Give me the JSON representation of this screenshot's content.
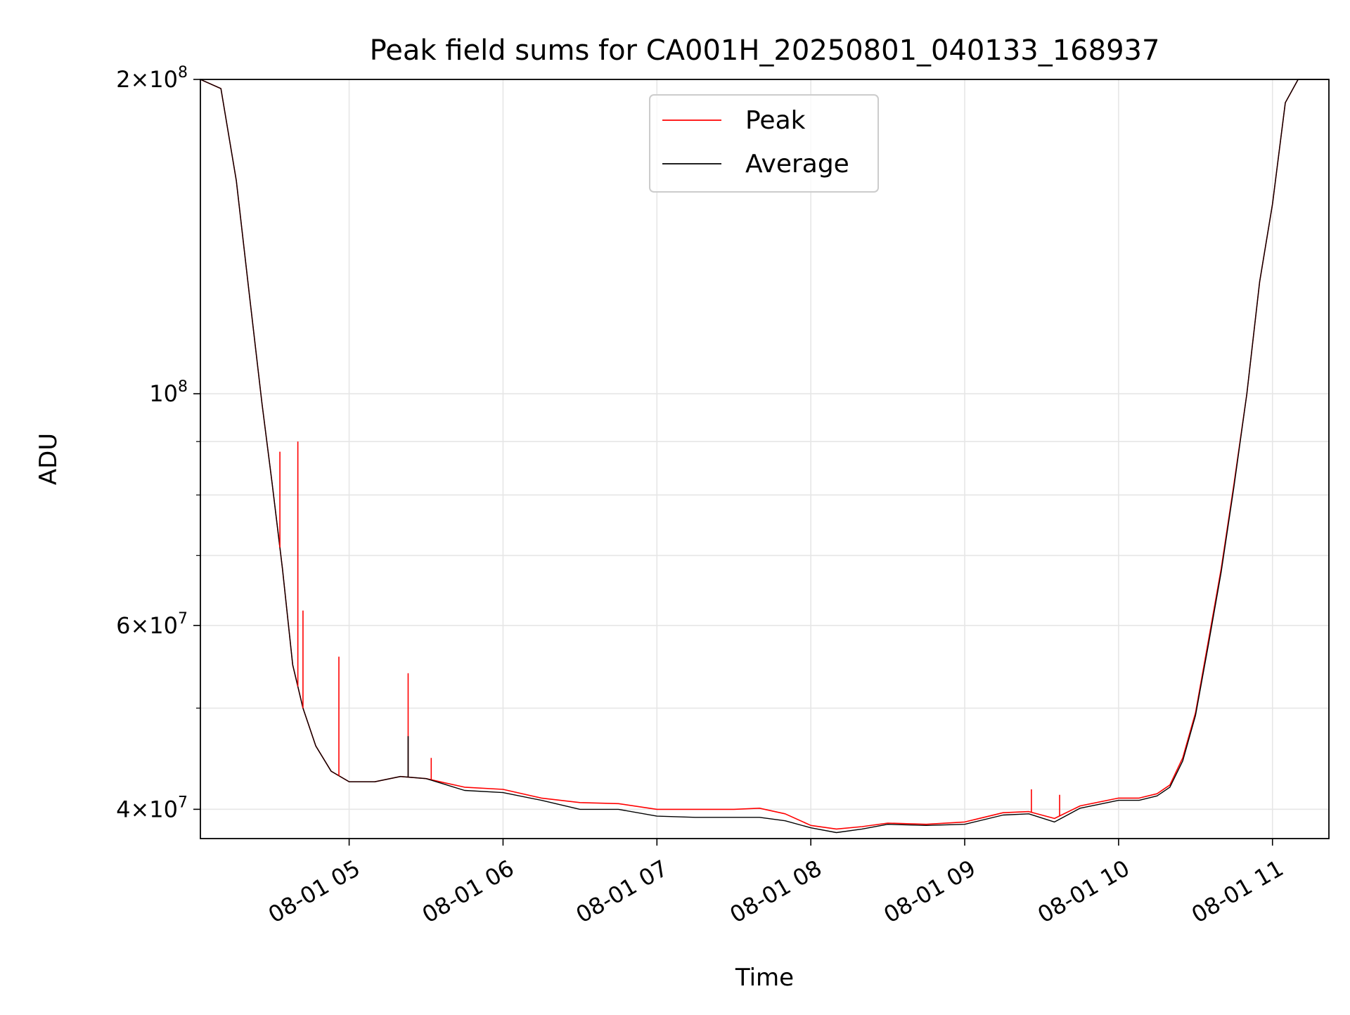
{
  "chart_data": {
    "type": "line",
    "title": "Peak field sums for CA001H_20250801_040133_168937",
    "xlabel": "Time",
    "ylabel": "ADU",
    "x_axis_type": "datetime",
    "xlim": [
      "2025-08-01T04:02:00",
      "2025-08-01T11:22:00"
    ],
    "ylim": [
      37500000,
      200000000
    ],
    "yscale": "log",
    "grid": true,
    "legend_position": "upper center",
    "x_ticks": [
      {
        "value": "2025-08-01T05:00:00",
        "label": "08-01 05"
      },
      {
        "value": "2025-08-01T06:00:00",
        "label": "08-01 06"
      },
      {
        "value": "2025-08-01T07:00:00",
        "label": "08-01 07"
      },
      {
        "value": "2025-08-01T08:00:00",
        "label": "08-01 08"
      },
      {
        "value": "2025-08-01T09:00:00",
        "label": "08-01 09"
      },
      {
        "value": "2025-08-01T10:00:00",
        "label": "08-01 10"
      },
      {
        "value": "2025-08-01T11:00:00",
        "label": "08-01 11"
      }
    ],
    "y_ticks": [
      {
        "value": 40000000,
        "label": "4×10⁷",
        "base": "4",
        "exp": "7"
      },
      {
        "value": 60000000,
        "label": "6×10⁷",
        "base": "6",
        "exp": "7"
      },
      {
        "value": 100000000,
        "label": "10⁸",
        "base": "",
        "exp": "8"
      },
      {
        "value": 200000000,
        "label": "2×10⁸",
        "base": "2",
        "exp": "8"
      }
    ],
    "y_minor_ticks": [
      50000000,
      70000000,
      80000000,
      90000000
    ],
    "series": [
      {
        "name": "Peak",
        "color": "#ff0000",
        "x": [
          "2025-08-01T04:02:00",
          "2025-08-01T04:10:00",
          "2025-08-01T04:16:00",
          "2025-08-01T04:21:00",
          "2025-08-01T04:26:00",
          "2025-08-01T04:30:00",
          "2025-08-01T04:34:00",
          "2025-08-01T04:38:00",
          "2025-08-01T04:42:00",
          "2025-08-01T04:47:00",
          "2025-08-01T04:53:00",
          "2025-08-01T05:00:00",
          "2025-08-01T05:10:00",
          "2025-08-01T05:20:00",
          "2025-08-01T05:30:00",
          "2025-08-01T05:45:00",
          "2025-08-01T06:00:00",
          "2025-08-01T06:15:00",
          "2025-08-01T06:30:00",
          "2025-08-01T06:45:00",
          "2025-08-01T07:00:00",
          "2025-08-01T07:15:00",
          "2025-08-01T07:30:00",
          "2025-08-01T07:40:00",
          "2025-08-01T07:50:00",
          "2025-08-01T08:00:00",
          "2025-08-01T08:10:00",
          "2025-08-01T08:20:00",
          "2025-08-01T08:30:00",
          "2025-08-01T08:45:00",
          "2025-08-01T09:00:00",
          "2025-08-01T09:15:00",
          "2025-08-01T09:25:00",
          "2025-08-01T09:35:00",
          "2025-08-01T09:45:00",
          "2025-08-01T10:00:00",
          "2025-08-01T10:08:00",
          "2025-08-01T10:15:00",
          "2025-08-01T10:20:00",
          "2025-08-01T10:25:00",
          "2025-08-01T10:30:00",
          "2025-08-01T10:35:00",
          "2025-08-01T10:40:00",
          "2025-08-01T10:45:00",
          "2025-08-01T10:50:00",
          "2025-08-01T10:55:00",
          "2025-08-01T11:00:00",
          "2025-08-01T11:05:00",
          "2025-08-01T11:10:00",
          "2025-08-01T11:22:00"
        ],
        "y": [
          200000000,
          196000000,
          160000000,
          125000000,
          98000000,
          82000000,
          68000000,
          55000000,
          50000000,
          46000000,
          43500000,
          42500000,
          42500000,
          43000000,
          42800000,
          42000000,
          41800000,
          41000000,
          40600000,
          40500000,
          40000000,
          40000000,
          40000000,
          40100000,
          39600000,
          38600000,
          38300000,
          38500000,
          38800000,
          38700000,
          38900000,
          39700000,
          39800000,
          39200000,
          40300000,
          41000000,
          41000000,
          41400000,
          42200000,
          44800000,
          49500000,
          58000000,
          68000000,
          82000000,
          100000000,
          128000000,
          152000000,
          190000000,
          200000000,
          200000000
        ]
      },
      {
        "name": "Average",
        "color": "#000000",
        "x": [
          "2025-08-01T04:02:00",
          "2025-08-01T04:10:00",
          "2025-08-01T04:16:00",
          "2025-08-01T04:21:00",
          "2025-08-01T04:26:00",
          "2025-08-01T04:30:00",
          "2025-08-01T04:34:00",
          "2025-08-01T04:38:00",
          "2025-08-01T04:42:00",
          "2025-08-01T04:47:00",
          "2025-08-01T04:53:00",
          "2025-08-01T05:00:00",
          "2025-08-01T05:10:00",
          "2025-08-01T05:20:00",
          "2025-08-01T05:30:00",
          "2025-08-01T05:45:00",
          "2025-08-01T06:00:00",
          "2025-08-01T06:15:00",
          "2025-08-01T06:30:00",
          "2025-08-01T06:45:00",
          "2025-08-01T07:00:00",
          "2025-08-01T07:15:00",
          "2025-08-01T07:30:00",
          "2025-08-01T07:40:00",
          "2025-08-01T07:50:00",
          "2025-08-01T08:00:00",
          "2025-08-01T08:10:00",
          "2025-08-01T08:20:00",
          "2025-08-01T08:30:00",
          "2025-08-01T08:45:00",
          "2025-08-01T09:00:00",
          "2025-08-01T09:15:00",
          "2025-08-01T09:25:00",
          "2025-08-01T09:35:00",
          "2025-08-01T09:45:00",
          "2025-08-01T10:00:00",
          "2025-08-01T10:08:00",
          "2025-08-01T10:15:00",
          "2025-08-01T10:20:00",
          "2025-08-01T10:25:00",
          "2025-08-01T10:30:00",
          "2025-08-01T10:35:00",
          "2025-08-01T10:40:00",
          "2025-08-01T10:45:00",
          "2025-08-01T10:50:00",
          "2025-08-01T10:55:00",
          "2025-08-01T11:00:00",
          "2025-08-01T11:05:00",
          "2025-08-01T11:10:00",
          "2025-08-01T11:22:00"
        ],
        "y": [
          200000000,
          196000000,
          160000000,
          125000000,
          98000000,
          82000000,
          68000000,
          55000000,
          50000000,
          46000000,
          43500000,
          42500000,
          42500000,
          43000000,
          42800000,
          41700000,
          41500000,
          40800000,
          40000000,
          40000000,
          39400000,
          39300000,
          39300000,
          39300000,
          39000000,
          38400000,
          38000000,
          38300000,
          38700000,
          38600000,
          38700000,
          39500000,
          39600000,
          38900000,
          40100000,
          40800000,
          40800000,
          41200000,
          42000000,
          44500000,
          49200000,
          57500000,
          67500000,
          81500000,
          100000000,
          128000000,
          152000000,
          190000000,
          200000000,
          200000000
        ]
      }
    ],
    "annotations_spikes": [
      {
        "series": "Peak",
        "x": "2025-08-01T04:33:00",
        "y": 88000000
      },
      {
        "series": "Peak",
        "x": "2025-08-01T04:40:00",
        "y": 90000000
      },
      {
        "series": "Peak",
        "x": "2025-08-01T04:42:00",
        "y": 62000000
      },
      {
        "series": "Peak",
        "x": "2025-08-01T04:56:00",
        "y": 56000000
      },
      {
        "series": "Peak",
        "x": "2025-08-01T05:23:00",
        "y": 54000000
      },
      {
        "series": "Average",
        "x": "2025-08-01T05:23:00",
        "y": 47000000
      },
      {
        "series": "Peak",
        "x": "2025-08-01T05:32:00",
        "y": 44800000
      },
      {
        "series": "Peak",
        "x": "2025-08-01T09:26:00",
        "y": 41800000
      },
      {
        "series": "Peak",
        "x": "2025-08-01T09:37:00",
        "y": 41300000
      }
    ]
  }
}
